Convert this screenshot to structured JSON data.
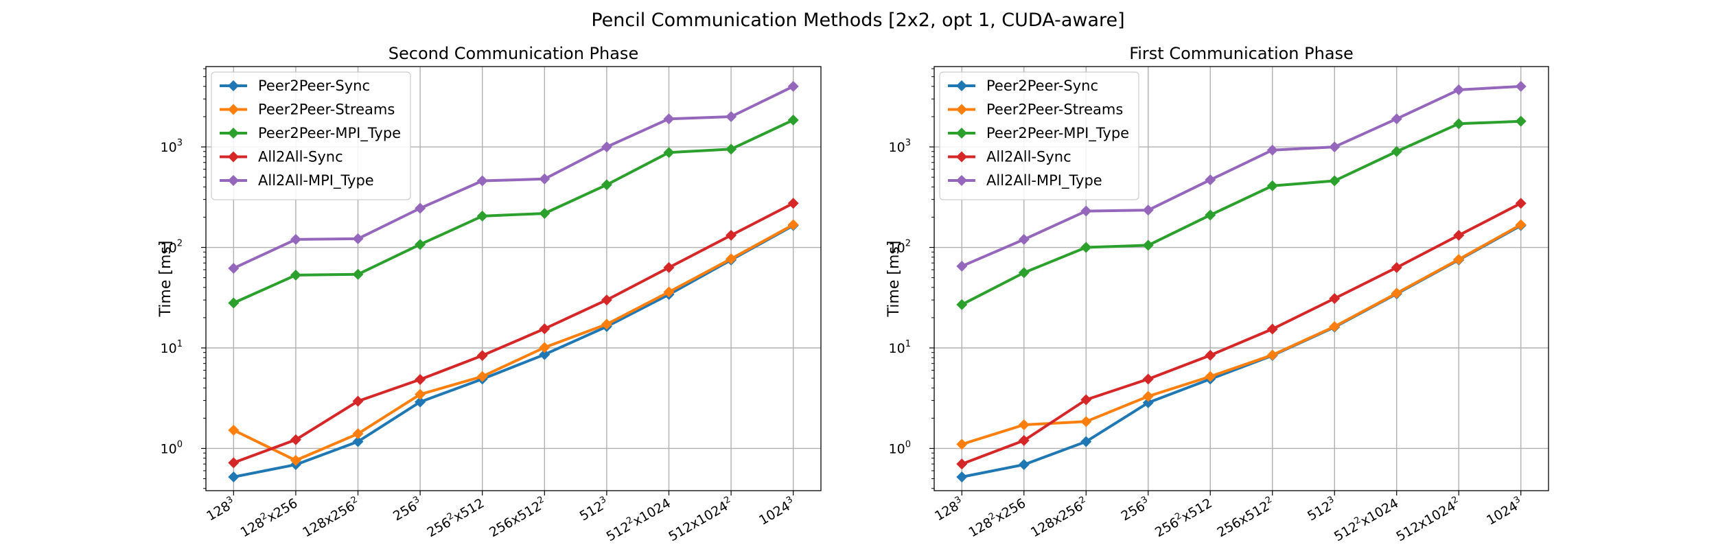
{
  "figure": {
    "title": "Pencil Communication Methods [2x2, opt 1, CUDA-aware]"
  },
  "chart_data": [
    {
      "type": "line",
      "title": "Second Communication Phase",
      "xlabel": "",
      "ylabel": "Time [ms]",
      "yscale": "log",
      "ylim": [
        0.38,
        6300
      ],
      "yticks": [
        1,
        10,
        100,
        1000
      ],
      "ytick_labels": [
        [
          "10",
          "0"
        ],
        [
          "10",
          "1"
        ],
        [
          "10",
          "2"
        ],
        [
          "10",
          "3"
        ]
      ],
      "grid": true,
      "legend_position": "top-left",
      "categories": [
        "128³",
        "128²x256",
        "128x256²",
        "256³",
        "256²x512",
        "256x512²",
        "512³",
        "512²x1024",
        "512x1024²",
        "1024³"
      ],
      "category_labels": [
        [
          "128",
          "3",
          ""
        ],
        [
          "128",
          "2",
          "x256"
        ],
        [
          "128x256",
          "2",
          ""
        ],
        [
          "256",
          "3",
          ""
        ],
        [
          "256",
          "2",
          "x512"
        ],
        [
          "256x512",
          "2",
          ""
        ],
        [
          "512",
          "3",
          ""
        ],
        [
          "512",
          "2",
          "x1024"
        ],
        [
          "512x1024",
          "2",
          ""
        ],
        [
          "1024",
          "3",
          ""
        ]
      ],
      "series": [
        {
          "name": "Peer2Peer-Sync",
          "color": "#1f77b4",
          "values": [
            0.52,
            0.69,
            1.17,
            2.9,
            4.9,
            8.6,
            16.3,
            34,
            75,
            165
          ]
        },
        {
          "name": "Peer2Peer-Streams",
          "color": "#ff7f0e",
          "values": [
            1.52,
            0.76,
            1.4,
            3.45,
            5.2,
            10.1,
            17.2,
            36,
            77,
            168
          ]
        },
        {
          "name": "Peer2Peer-MPI_Type",
          "color": "#2ca02c",
          "values": [
            28,
            53,
            54,
            107,
            205,
            218,
            420,
            880,
            950,
            1850
          ]
        },
        {
          "name": "All2All-Sync",
          "color": "#d62728",
          "values": [
            0.72,
            1.22,
            2.95,
            4.85,
            8.4,
            15.5,
            30,
            63,
            132,
            275
          ]
        },
        {
          "name": "All2All-MPI_Type",
          "color": "#9467bd",
          "values": [
            62,
            120,
            122,
            245,
            460,
            480,
            1000,
            1900,
            2000,
            4000
          ]
        }
      ]
    },
    {
      "type": "line",
      "title": "First Communication Phase",
      "xlabel": "",
      "ylabel": "Time [ms]",
      "yscale": "log",
      "ylim": [
        0.38,
        6300
      ],
      "yticks": [
        1,
        10,
        100,
        1000
      ],
      "ytick_labels": [
        [
          "10",
          "0"
        ],
        [
          "10",
          "1"
        ],
        [
          "10",
          "2"
        ],
        [
          "10",
          "3"
        ]
      ],
      "grid": true,
      "legend_position": "top-left",
      "categories": [
        "128³",
        "128²x256",
        "128x256²",
        "256³",
        "256²x512",
        "256x512²",
        "512³",
        "512²x1024",
        "512x1024²",
        "1024³"
      ],
      "category_labels": [
        [
          "128",
          "3",
          ""
        ],
        [
          "128",
          "2",
          "x256"
        ],
        [
          "128x256",
          "2",
          ""
        ],
        [
          "256",
          "3",
          ""
        ],
        [
          "256",
          "2",
          "x512"
        ],
        [
          "256x512",
          "2",
          ""
        ],
        [
          "512",
          "3",
          ""
        ],
        [
          "512",
          "2",
          "x1024"
        ],
        [
          "512x1024",
          "2",
          ""
        ],
        [
          "1024",
          "3",
          ""
        ]
      ],
      "series": [
        {
          "name": "Peer2Peer-Sync",
          "color": "#1f77b4",
          "values": [
            0.52,
            0.69,
            1.17,
            2.85,
            4.9,
            8.4,
            16.1,
            34.5,
            75,
            165
          ]
        },
        {
          "name": "Peer2Peer-Streams",
          "color": "#ff7f0e",
          "values": [
            1.1,
            1.72,
            1.85,
            3.3,
            5.2,
            8.5,
            16.3,
            35,
            76,
            168
          ]
        },
        {
          "name": "Peer2Peer-MPI_Type",
          "color": "#2ca02c",
          "values": [
            27,
            56,
            100,
            105,
            210,
            410,
            460,
            900,
            1700,
            1800
          ]
        },
        {
          "name": "All2All-Sync",
          "color": "#d62728",
          "values": [
            0.7,
            1.2,
            3.05,
            4.9,
            8.45,
            15.4,
            31,
            63,
            132,
            275
          ]
        },
        {
          "name": "All2All-MPI_Type",
          "color": "#9467bd",
          "values": [
            65,
            120,
            230,
            235,
            470,
            930,
            1000,
            1900,
            3700,
            4000
          ]
        }
      ]
    }
  ]
}
